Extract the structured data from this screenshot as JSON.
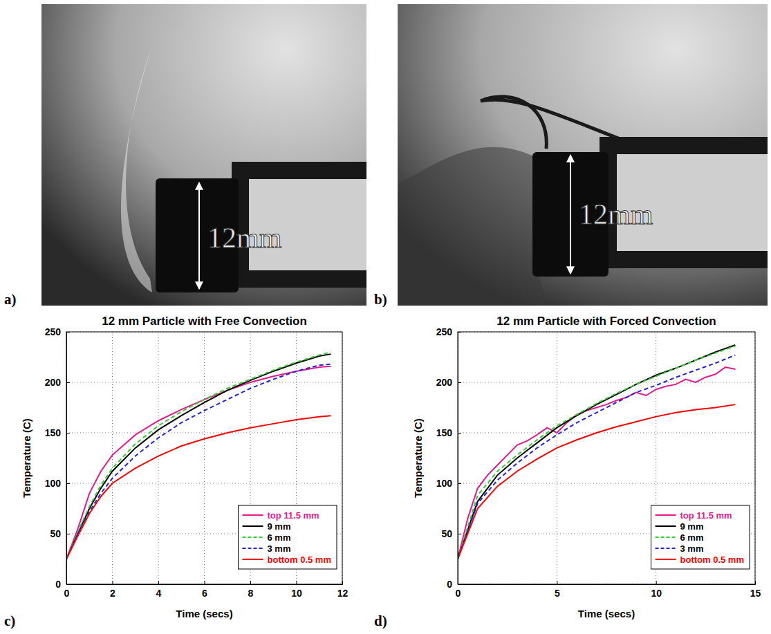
{
  "panel_labels": [
    "a)",
    "b)",
    "c)",
    "d)"
  ],
  "photos": [
    {
      "annotation": "12mm"
    },
    {
      "annotation": "12mm"
    }
  ],
  "chart_data": [
    {
      "type": "line",
      "title": "12 mm Particle with Free Convection",
      "x_label": "Time (secs)",
      "y_label": "Temperature (C)",
      "xlim": [
        0,
        12
      ],
      "xticks": [
        0,
        2,
        4,
        6,
        8,
        10,
        12
      ],
      "ylim": [
        0,
        250
      ],
      "yticks": [
        0,
        50,
        100,
        150,
        200,
        250
      ],
      "grid": true,
      "legend": "lower right",
      "series": [
        {
          "name": "top 11.5 mm",
          "color": "#e8198b",
          "line_style": "solid",
          "x": [
            0,
            0.5,
            1,
            1.5,
            2,
            3,
            4,
            5,
            6,
            7,
            8,
            9,
            10,
            11,
            11.5
          ],
          "values": [
            25,
            55,
            90,
            112,
            128,
            148,
            162,
            173,
            183,
            192,
            200,
            206,
            211,
            215,
            216
          ]
        },
        {
          "name": "9 mm",
          "color": "#000000",
          "line_style": "solid",
          "x": [
            0,
            0.5,
            1,
            1.5,
            2,
            3,
            4,
            5,
            6,
            7,
            8,
            9,
            10,
            11,
            11.5
          ],
          "values": [
            25,
            50,
            75,
            95,
            112,
            135,
            153,
            167,
            180,
            192,
            202,
            211,
            219,
            226,
            228
          ]
        },
        {
          "name": "6 mm",
          "color": "#33cc33",
          "line_style": "dashed",
          "x": [
            0,
            0.5,
            1,
            1.5,
            2,
            3,
            4,
            5,
            6,
            7,
            8,
            9,
            10,
            11,
            11.5
          ],
          "values": [
            25,
            52,
            77,
            98,
            115,
            139,
            157,
            171,
            183,
            194,
            203,
            212,
            220,
            227,
            230
          ]
        },
        {
          "name": "3 mm",
          "color": "#2222dd",
          "line_style": "dashed",
          "x": [
            0,
            0.5,
            1,
            1.5,
            2,
            3,
            4,
            5,
            6,
            7,
            8,
            9,
            10,
            11,
            11.5
          ],
          "values": [
            25,
            50,
            72,
            90,
            105,
            127,
            145,
            160,
            172,
            183,
            194,
            203,
            211,
            217,
            218
          ]
        },
        {
          "name": "bottom 0.5 mm",
          "color": "#ff0000",
          "line_style": "solid",
          "x": [
            0,
            0.5,
            1,
            1.5,
            2,
            3,
            4,
            5,
            6,
            7,
            8,
            9,
            10,
            11,
            11.5
          ],
          "values": [
            25,
            48,
            70,
            87,
            100,
            115,
            127,
            137,
            144,
            150,
            155,
            159,
            163,
            166,
            167
          ]
        }
      ]
    },
    {
      "type": "line",
      "title": "12 mm Particle with Forced Convection",
      "x_label": "Time (secs)",
      "y_label": "Temperature (C)",
      "xlim": [
        0,
        15
      ],
      "xticks": [
        0,
        5,
        10,
        15
      ],
      "ylim": [
        0,
        250
      ],
      "yticks": [
        0,
        50,
        100,
        150,
        200,
        250
      ],
      "grid": true,
      "legend": "lower right",
      "series": [
        {
          "name": "top 11.5 mm",
          "color": "#e8198b",
          "line_style": "solid",
          "x": [
            0,
            0.5,
            1,
            1.5,
            2,
            2.5,
            3,
            3.5,
            4,
            4.5,
            5,
            5.5,
            6,
            6.5,
            7,
            7.5,
            8,
            8.5,
            9,
            9.5,
            10,
            10.5,
            11,
            11.5,
            12,
            12.5,
            13,
            13.5,
            14
          ],
          "values": [
            25,
            65,
            95,
            108,
            118,
            128,
            138,
            142,
            148,
            155,
            150,
            160,
            168,
            172,
            175,
            178,
            182,
            185,
            190,
            187,
            193,
            196,
            198,
            203,
            200,
            205,
            208,
            215,
            213
          ]
        },
        {
          "name": "9 mm",
          "color": "#000000",
          "line_style": "solid",
          "x": [
            0,
            1,
            2,
            3,
            4,
            5,
            6,
            7,
            8,
            9,
            10,
            11,
            12,
            13,
            14
          ],
          "values": [
            25,
            82,
            108,
            125,
            140,
            155,
            167,
            178,
            188,
            198,
            207,
            214,
            222,
            230,
            237
          ]
        },
        {
          "name": "6 mm",
          "color": "#33cc33",
          "line_style": "dashed",
          "x": [
            0,
            1,
            2,
            3,
            4,
            5,
            6,
            7,
            8,
            9,
            10,
            11,
            12,
            13,
            14
          ],
          "values": [
            25,
            88,
            112,
            128,
            143,
            157,
            168,
            179,
            189,
            198,
            206,
            214,
            222,
            229,
            236
          ]
        },
        {
          "name": "3 mm",
          "color": "#2222dd",
          "line_style": "dashed",
          "x": [
            0,
            1,
            2,
            3,
            4,
            5,
            6,
            7,
            8,
            9,
            10,
            11,
            12,
            13,
            14
          ],
          "values": [
            25,
            80,
            103,
            120,
            135,
            148,
            160,
            170,
            180,
            190,
            197,
            205,
            212,
            219,
            227
          ]
        },
        {
          "name": "bottom 0.5 mm",
          "color": "#ff0000",
          "line_style": "solid",
          "x": [
            0,
            1,
            2,
            3,
            4,
            5,
            6,
            7,
            8,
            9,
            10,
            11,
            12,
            13,
            14
          ],
          "values": [
            25,
            75,
            97,
            112,
            124,
            135,
            143,
            150,
            156,
            161,
            166,
            170,
            173,
            175,
            178
          ]
        }
      ]
    }
  ]
}
